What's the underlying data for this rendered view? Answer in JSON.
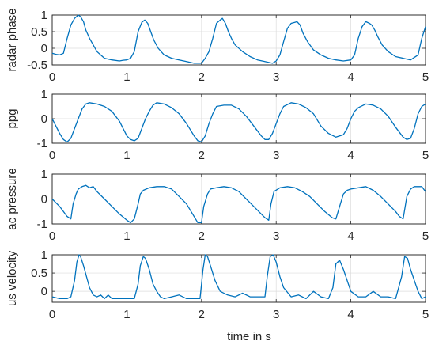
{
  "chart_data": {
    "type": "line",
    "xlabel": "time in s",
    "color": "#0072BD",
    "xlim": [
      0,
      5
    ],
    "xticks": [
      "0",
      "1",
      "2",
      "3",
      "4",
      "5"
    ],
    "grid": true,
    "panels": [
      {
        "ylabel": "radar phase",
        "ylim": [
          -0.5,
          1
        ],
        "yticks": [
          "-0.5",
          "0",
          "0.5",
          "1"
        ],
        "x": [
          0,
          0.05,
          0.1,
          0.15,
          0.2,
          0.25,
          0.3,
          0.35,
          0.38,
          0.42,
          0.45,
          0.5,
          0.55,
          0.6,
          0.7,
          0.8,
          0.9,
          0.95,
          1.0,
          1.05,
          1.1,
          1.15,
          1.2,
          1.24,
          1.28,
          1.32,
          1.36,
          1.42,
          1.5,
          1.6,
          1.7,
          1.8,
          1.9,
          2.0,
          2.05,
          2.1,
          2.15,
          2.2,
          2.25,
          2.28,
          2.32,
          2.36,
          2.4,
          2.45,
          2.55,
          2.65,
          2.75,
          2.85,
          2.95,
          3.0,
          3.05,
          3.1,
          3.15,
          3.2,
          3.25,
          3.28,
          3.32,
          3.36,
          3.42,
          3.5,
          3.6,
          3.7,
          3.8,
          3.9,
          4.0,
          4.05,
          4.1,
          4.15,
          4.2,
          4.25,
          4.28,
          4.32,
          4.36,
          4.42,
          4.5,
          4.6,
          4.7,
          4.8,
          4.9,
          4.95,
          5.0
        ],
        "y": [
          -0.15,
          -0.18,
          -0.2,
          -0.15,
          0.3,
          0.7,
          0.9,
          1.0,
          0.95,
          0.8,
          0.55,
          0.3,
          0.1,
          -0.1,
          -0.3,
          -0.35,
          -0.38,
          -0.36,
          -0.35,
          -0.3,
          -0.1,
          0.5,
          0.78,
          0.85,
          0.75,
          0.5,
          0.25,
          0.0,
          -0.2,
          -0.3,
          -0.35,
          -0.4,
          -0.45,
          -0.45,
          -0.3,
          -0.1,
          0.3,
          0.75,
          0.85,
          0.9,
          0.75,
          0.5,
          0.3,
          0.1,
          -0.1,
          -0.25,
          -0.35,
          -0.4,
          -0.45,
          -0.38,
          -0.2,
          0.2,
          0.6,
          0.75,
          0.78,
          0.8,
          0.7,
          0.45,
          0.2,
          -0.05,
          -0.2,
          -0.3,
          -0.35,
          -0.38,
          -0.35,
          -0.2,
          0.3,
          0.65,
          0.8,
          0.75,
          0.7,
          0.55,
          0.35,
          0.1,
          -0.1,
          -0.25,
          -0.3,
          -0.35,
          -0.2,
          0.3,
          0.65
        ]
      },
      {
        "ylabel": "ppg",
        "ylim": [
          -1,
          1
        ],
        "yticks": [
          "-1",
          "0",
          "1"
        ],
        "x": [
          0,
          0.05,
          0.1,
          0.15,
          0.2,
          0.25,
          0.3,
          0.35,
          0.4,
          0.45,
          0.5,
          0.6,
          0.7,
          0.8,
          0.9,
          0.95,
          1.0,
          1.05,
          1.1,
          1.15,
          1.2,
          1.25,
          1.3,
          1.35,
          1.4,
          1.5,
          1.6,
          1.7,
          1.8,
          1.9,
          1.95,
          2.0,
          2.05,
          2.1,
          2.15,
          2.2,
          2.3,
          2.4,
          2.5,
          2.6,
          2.7,
          2.8,
          2.85,
          2.9,
          2.95,
          3.0,
          3.05,
          3.1,
          3.2,
          3.3,
          3.4,
          3.5,
          3.6,
          3.7,
          3.8,
          3.9,
          3.95,
          4.0,
          4.05,
          4.1,
          4.2,
          4.3,
          4.4,
          4.5,
          4.6,
          4.7,
          4.75,
          4.8,
          4.85,
          4.9,
          4.95,
          5.0
        ],
        "y": [
          0.0,
          -0.3,
          -0.6,
          -0.85,
          -0.95,
          -0.8,
          -0.4,
          0.0,
          0.4,
          0.6,
          0.65,
          0.6,
          0.5,
          0.3,
          -0.1,
          -0.4,
          -0.7,
          -0.85,
          -0.9,
          -0.8,
          -0.4,
          0.0,
          0.3,
          0.55,
          0.65,
          0.6,
          0.45,
          0.2,
          -0.2,
          -0.7,
          -0.9,
          -0.95,
          -0.7,
          -0.2,
          0.2,
          0.5,
          0.55,
          0.55,
          0.4,
          0.1,
          -0.3,
          -0.7,
          -0.85,
          -0.85,
          -0.6,
          -0.2,
          0.2,
          0.5,
          0.65,
          0.6,
          0.45,
          0.2,
          -0.3,
          -0.6,
          -0.75,
          -0.65,
          -0.4,
          0.0,
          0.3,
          0.45,
          0.6,
          0.55,
          0.4,
          0.1,
          -0.35,
          -0.75,
          -0.85,
          -0.8,
          -0.4,
          0.2,
          0.5,
          0.6
        ]
      },
      {
        "ylabel": "ac pressure",
        "ylim": [
          -1,
          1
        ],
        "yticks": [
          "-1",
          "0",
          "1"
        ],
        "x": [
          0,
          0.1,
          0.2,
          0.25,
          0.28,
          0.32,
          0.35,
          0.4,
          0.45,
          0.5,
          0.55,
          0.6,
          0.7,
          0.8,
          0.9,
          1.0,
          1.05,
          1.1,
          1.15,
          1.18,
          1.22,
          1.3,
          1.4,
          1.5,
          1.6,
          1.7,
          1.8,
          1.9,
          1.95,
          2.0,
          2.03,
          2.08,
          2.12,
          2.2,
          2.3,
          2.4,
          2.5,
          2.6,
          2.7,
          2.8,
          2.85,
          2.9,
          2.93,
          2.97,
          3.05,
          3.15,
          3.25,
          3.35,
          3.45,
          3.55,
          3.65,
          3.75,
          3.8,
          3.85,
          3.9,
          3.95,
          4.0,
          4.1,
          4.2,
          4.3,
          4.4,
          4.5,
          4.6,
          4.65,
          4.7,
          4.75,
          4.8,
          4.85,
          4.95,
          5.0
        ],
        "y": [
          0.0,
          -0.3,
          -0.7,
          -0.8,
          -0.2,
          0.2,
          0.4,
          0.5,
          0.55,
          0.45,
          0.5,
          0.3,
          0.0,
          -0.3,
          -0.6,
          -0.85,
          -0.95,
          -0.8,
          -0.2,
          0.2,
          0.35,
          0.45,
          0.5,
          0.5,
          0.4,
          0.1,
          -0.2,
          -0.7,
          -0.95,
          -0.95,
          -0.3,
          0.2,
          0.4,
          0.45,
          0.5,
          0.45,
          0.3,
          0.0,
          -0.3,
          -0.6,
          -0.75,
          -0.85,
          -0.2,
          0.3,
          0.45,
          0.5,
          0.45,
          0.3,
          0.1,
          -0.2,
          -0.5,
          -0.75,
          -0.8,
          -0.3,
          0.2,
          0.35,
          0.4,
          0.45,
          0.5,
          0.35,
          0.1,
          -0.2,
          -0.5,
          -0.7,
          -0.8,
          0.1,
          0.4,
          0.5,
          0.5,
          0.3
        ]
      },
      {
        "ylabel": "us velocity",
        "ylim": [
          -0.3,
          1
        ],
        "yticks": [
          "0",
          "0.5",
          "1"
        ],
        "x": [
          0,
          0.1,
          0.2,
          0.25,
          0.3,
          0.33,
          0.36,
          0.38,
          0.42,
          0.46,
          0.5,
          0.55,
          0.6,
          0.65,
          0.7,
          0.75,
          0.8,
          0.9,
          1.0,
          1.1,
          1.15,
          1.18,
          1.22,
          1.25,
          1.3,
          1.35,
          1.4,
          1.45,
          1.5,
          1.6,
          1.7,
          1.8,
          1.9,
          1.98,
          2.02,
          2.05,
          2.08,
          2.12,
          2.18,
          2.25,
          2.35,
          2.45,
          2.55,
          2.65,
          2.75,
          2.85,
          2.88,
          2.92,
          2.96,
          3.0,
          3.05,
          3.1,
          3.2,
          3.3,
          3.4,
          3.5,
          3.6,
          3.7,
          3.76,
          3.8,
          3.85,
          3.9,
          3.95,
          4.0,
          4.1,
          4.2,
          4.3,
          4.4,
          4.5,
          4.6,
          4.68,
          4.72,
          4.76,
          4.8,
          4.85,
          4.9,
          4.95,
          5.0
        ],
        "y": [
          -0.15,
          -0.2,
          -0.2,
          -0.15,
          0.3,
          0.8,
          1.0,
          0.95,
          0.7,
          0.4,
          0.1,
          -0.1,
          -0.15,
          -0.1,
          -0.2,
          -0.1,
          -0.2,
          -0.2,
          -0.2,
          -0.2,
          0.2,
          0.7,
          0.95,
          0.9,
          0.6,
          0.2,
          0.0,
          -0.15,
          -0.2,
          -0.15,
          -0.1,
          -0.2,
          -0.2,
          -0.2,
          0.6,
          1.0,
          0.95,
          0.7,
          0.3,
          0.0,
          -0.1,
          -0.15,
          -0.05,
          -0.15,
          -0.15,
          -0.15,
          0.4,
          0.95,
          1.0,
          0.8,
          0.4,
          0.1,
          -0.15,
          -0.1,
          -0.2,
          0.0,
          -0.15,
          -0.2,
          0.1,
          0.75,
          0.85,
          0.6,
          0.3,
          0.0,
          -0.15,
          -0.15,
          0.0,
          -0.15,
          -0.15,
          -0.2,
          0.4,
          0.95,
          0.9,
          0.6,
          0.3,
          0.0,
          -0.2,
          -0.15
        ]
      }
    ]
  }
}
